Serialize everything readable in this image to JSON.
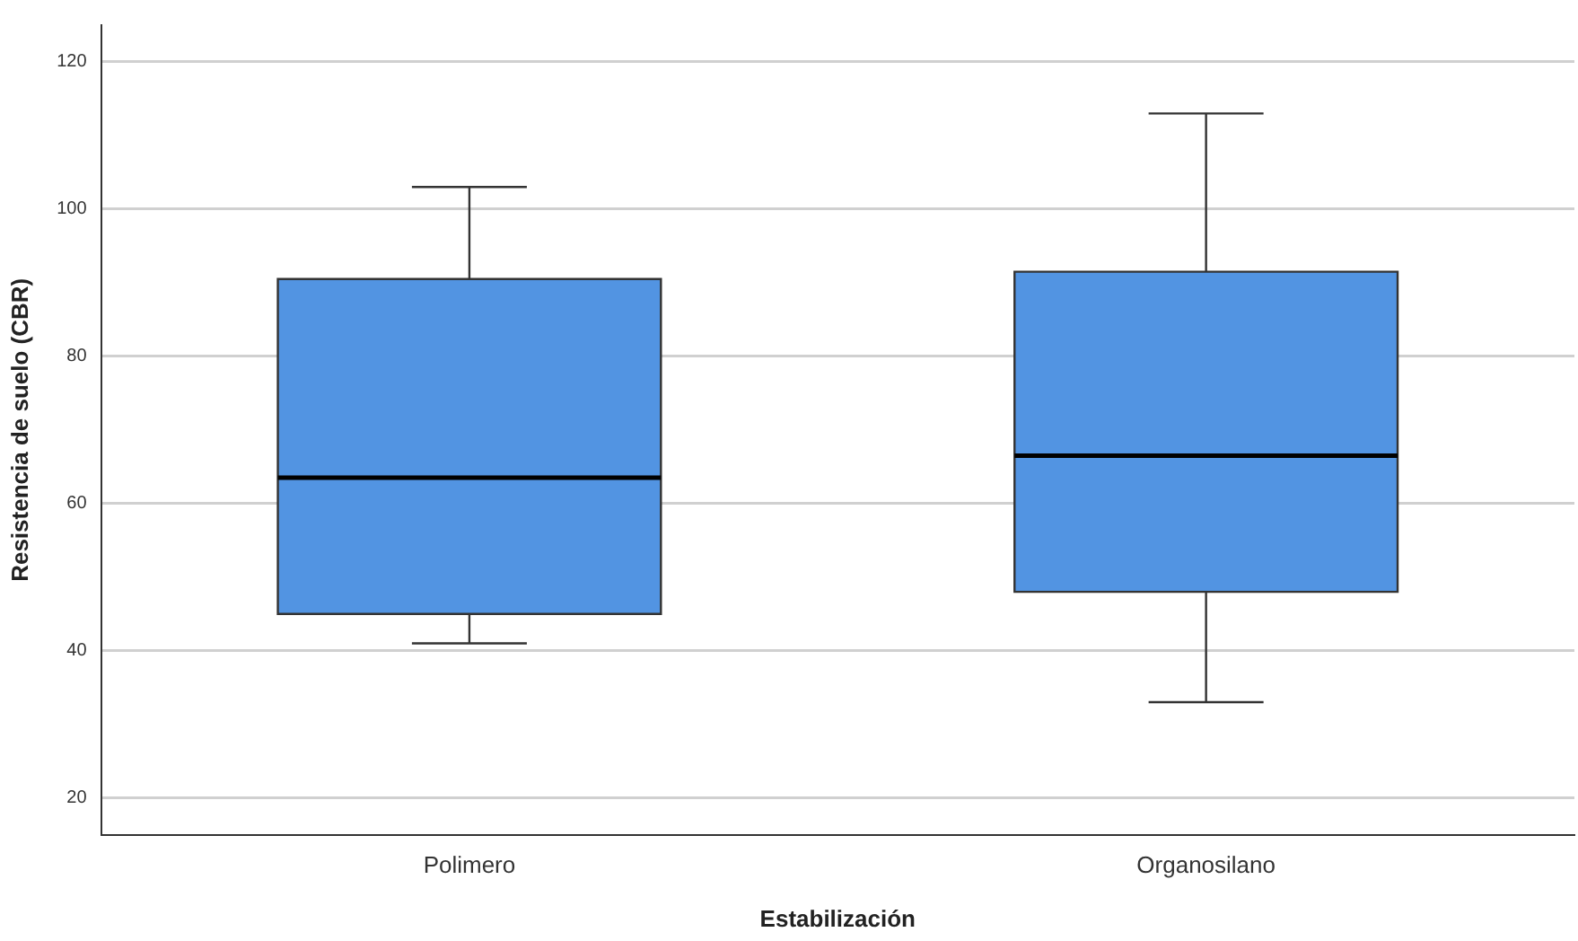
{
  "chart_data": {
    "type": "box",
    "xlabel": "Estabilización",
    "ylabel": "Resistencia de suelo (CBR)",
    "categories": [
      "Polimero",
      "Organosilano"
    ],
    "color": "#5294e2",
    "boxes": [
      {
        "low": 41,
        "q1": 45,
        "median": 63.5,
        "q3": 90.5,
        "high": 103
      },
      {
        "low": 33,
        "q1": 48,
        "median": 66.5,
        "q3": 91.5,
        "high": 113
      }
    ],
    "ylim": [
      15,
      125
    ],
    "yticks": [
      20,
      40,
      60,
      80,
      100,
      120
    ],
    "grid": "y"
  }
}
